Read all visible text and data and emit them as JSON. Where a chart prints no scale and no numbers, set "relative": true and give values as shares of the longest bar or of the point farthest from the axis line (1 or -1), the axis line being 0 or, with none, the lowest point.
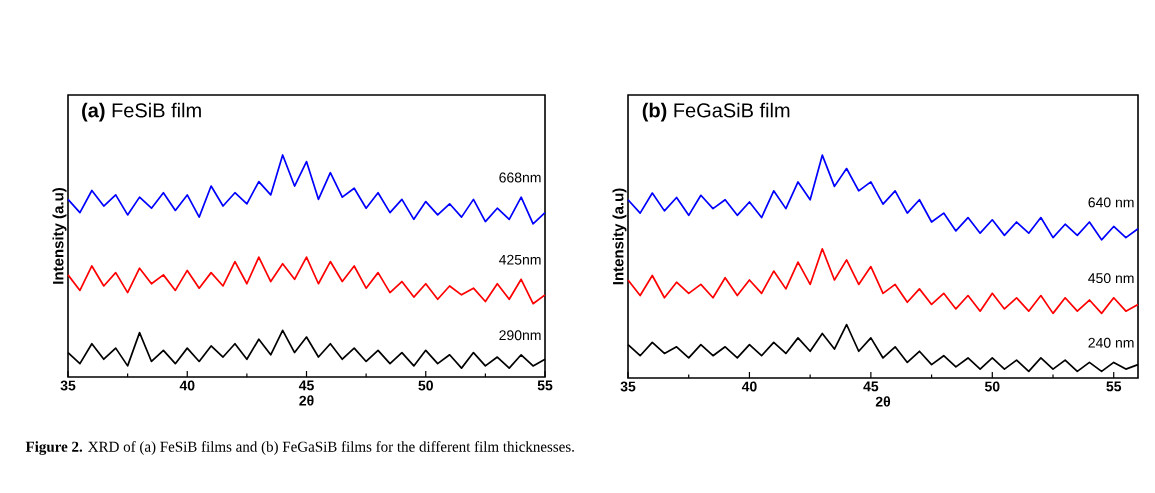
{
  "chart_data": [
    {
      "type": "line",
      "title": "**(a)** FeSiB film",
      "xlabel": "2θ",
      "ylabel": "Intensity (a.u)",
      "relative": true,
      "legend": false,
      "tick_labels": "x",
      "annotations": [
        "**Figure 2.** XRD of (a) FeSiB films and (b) FeGaSiB films for the different film thicknesses."
      ],
      "xlim": [
        35,
        55
      ],
      "xticks": [
        35,
        40,
        45,
        50,
        55
      ],
      "x": [
        35,
        35.5,
        36,
        36.5,
        37,
        37.5,
        38,
        38.5,
        39,
        39.5,
        40,
        40.5,
        41,
        41.5,
        42,
        42.5,
        43,
        43.5,
        44,
        44.5,
        45,
        45.5,
        46,
        46.5,
        47,
        47.5,
        48,
        48.5,
        49,
        49.5,
        50,
        50.5,
        51,
        51.5,
        52,
        52.5,
        53,
        53.5,
        54,
        54.5,
        55
      ],
      "series": [
        {
          "name": "668nm",
          "color": "#0000ff",
          "values": [
            0.8,
            0.74,
            0.84,
            0.77,
            0.82,
            0.73,
            0.81,
            0.76,
            0.83,
            0.75,
            0.82,
            0.72,
            0.86,
            0.77,
            0.83,
            0.78,
            0.88,
            0.82,
            1.0,
            0.86,
            0.97,
            0.8,
            0.92,
            0.81,
            0.85,
            0.76,
            0.83,
            0.74,
            0.8,
            0.71,
            0.79,
            0.73,
            0.78,
            0.72,
            0.8,
            0.7,
            0.76,
            0.71,
            0.81,
            0.69,
            0.74
          ]
        },
        {
          "name": "425nm",
          "color": "#ff0000",
          "values": [
            0.46,
            0.39,
            0.5,
            0.41,
            0.47,
            0.38,
            0.49,
            0.42,
            0.46,
            0.39,
            0.48,
            0.4,
            0.47,
            0.41,
            0.52,
            0.42,
            0.54,
            0.43,
            0.51,
            0.44,
            0.54,
            0.42,
            0.52,
            0.43,
            0.5,
            0.4,
            0.47,
            0.38,
            0.43,
            0.36,
            0.42,
            0.35,
            0.41,
            0.37,
            0.4,
            0.34,
            0.42,
            0.35,
            0.44,
            0.33,
            0.37
          ]
        },
        {
          "name": "290nm",
          "color": "#000000",
          "values": [
            0.11,
            0.06,
            0.15,
            0.08,
            0.13,
            0.05,
            0.2,
            0.07,
            0.12,
            0.06,
            0.13,
            0.07,
            0.14,
            0.09,
            0.15,
            0.08,
            0.17,
            0.1,
            0.21,
            0.11,
            0.18,
            0.09,
            0.15,
            0.08,
            0.13,
            0.07,
            0.12,
            0.06,
            0.11,
            0.05,
            0.12,
            0.06,
            0.1,
            0.04,
            0.11,
            0.05,
            0.09,
            0.04,
            0.1,
            0.05,
            0.08
          ]
        }
      ]
    },
    {
      "type": "line",
      "title": "**(b)** FeGaSiB film",
      "xlabel": "2θ",
      "ylabel": "Intensity (a.u)",
      "relative": true,
      "legend": false,
      "tick_labels": "x",
      "xlim": [
        35,
        56
      ],
      "xticks": [
        35,
        40,
        45,
        50,
        55
      ],
      "x": [
        35,
        35.5,
        36,
        36.5,
        37,
        37.5,
        38,
        38.5,
        39,
        39.5,
        40,
        40.5,
        41,
        41.5,
        42,
        42.5,
        43,
        43.5,
        44,
        44.5,
        45,
        45.5,
        46,
        46.5,
        47,
        47.5,
        48,
        48.5,
        49,
        49.5,
        50,
        50.5,
        51,
        51.5,
        52,
        52.5,
        53,
        53.5,
        54,
        54.5,
        55,
        55.5,
        56
      ],
      "series": [
        {
          "name": "640 nm",
          "color": "#0000ff",
          "values": [
            0.8,
            0.74,
            0.83,
            0.75,
            0.81,
            0.73,
            0.82,
            0.76,
            0.8,
            0.73,
            0.79,
            0.72,
            0.84,
            0.76,
            0.88,
            0.8,
            1.0,
            0.86,
            0.94,
            0.84,
            0.88,
            0.78,
            0.84,
            0.74,
            0.8,
            0.7,
            0.74,
            0.66,
            0.72,
            0.65,
            0.71,
            0.64,
            0.7,
            0.65,
            0.72,
            0.63,
            0.69,
            0.64,
            0.7,
            0.62,
            0.68,
            0.63,
            0.67
          ]
        },
        {
          "name": "450 nm",
          "color": "#ff0000",
          "values": [
            0.44,
            0.37,
            0.46,
            0.36,
            0.43,
            0.38,
            0.42,
            0.36,
            0.45,
            0.37,
            0.44,
            0.38,
            0.48,
            0.4,
            0.52,
            0.42,
            0.58,
            0.44,
            0.53,
            0.42,
            0.5,
            0.38,
            0.42,
            0.34,
            0.4,
            0.33,
            0.38,
            0.31,
            0.37,
            0.3,
            0.38,
            0.31,
            0.36,
            0.3,
            0.37,
            0.29,
            0.36,
            0.3,
            0.35,
            0.29,
            0.36,
            0.3,
            0.33
          ]
        },
        {
          "name": "240 nm",
          "color": "#000000",
          "values": [
            0.15,
            0.1,
            0.16,
            0.11,
            0.14,
            0.09,
            0.15,
            0.1,
            0.14,
            0.09,
            0.15,
            0.1,
            0.16,
            0.11,
            0.18,
            0.12,
            0.2,
            0.13,
            0.24,
            0.12,
            0.18,
            0.09,
            0.14,
            0.07,
            0.12,
            0.06,
            0.1,
            0.05,
            0.09,
            0.04,
            0.09,
            0.04,
            0.08,
            0.03,
            0.09,
            0.04,
            0.08,
            0.03,
            0.07,
            0.03,
            0.07,
            0.04,
            0.06
          ]
        }
      ]
    }
  ]
}
